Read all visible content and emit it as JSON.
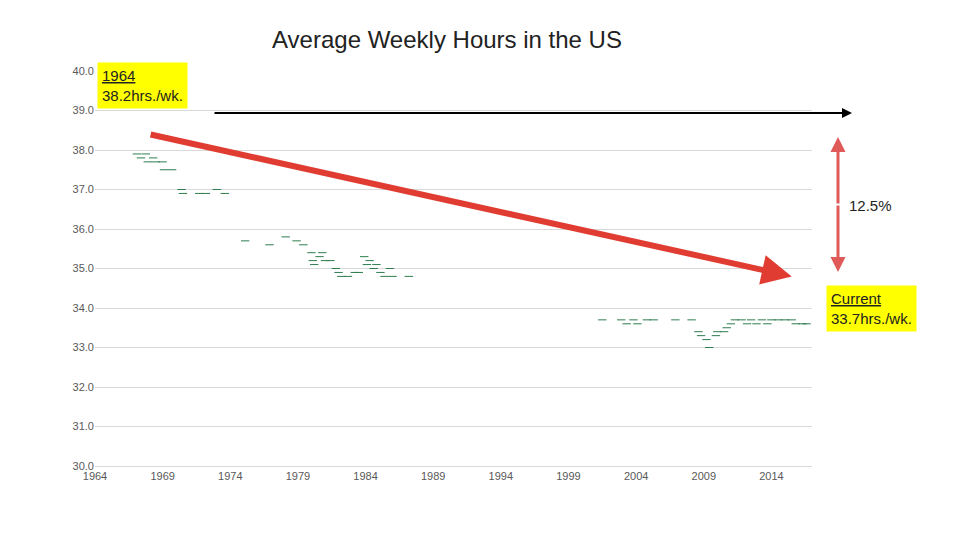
{
  "chart_data": {
    "type": "scatter",
    "title": "Average Weekly Hours in the US",
    "xlim": [
      1964,
      2017
    ],
    "xticks": [
      1964,
      1969,
      1974,
      1979,
      1984,
      1989,
      1994,
      1999,
      2004,
      2009,
      2014
    ],
    "ylim": [
      30,
      40
    ],
    "yticks": [
      {
        "value": 30,
        "label": "30.0"
      },
      {
        "value": 31,
        "label": "31.0"
      },
      {
        "value": 32,
        "label": "32.0"
      },
      {
        "value": 33,
        "label": "33.0"
      },
      {
        "value": 34,
        "label": "34.0"
      },
      {
        "value": 35,
        "label": "35.0"
      },
      {
        "value": 36,
        "label": "36.0"
      },
      {
        "value": 37,
        "label": "37.0"
      },
      {
        "value": 38,
        "label": "38.0"
      },
      {
        "value": 39,
        "label": "39.0"
      },
      {
        "value": 40,
        "label": "40.0"
      }
    ],
    "grid": true,
    "series": [
      {
        "type": "scatter",
        "color": "#2e7d4f",
        "marker": "dash",
        "x": [
          1967.1,
          1967.4,
          1967.75,
          1967.9,
          1968.3,
          1968.5,
          1969.0,
          1969.1,
          1969.7,
          1970.4,
          1970.5,
          1971.7,
          1972.2,
          1973.0,
          1973.6,
          1975.1,
          1976.9,
          1978.1,
          1978.9,
          1979.4,
          1980.0,
          1980.1,
          1980.2,
          1980.6,
          1980.8,
          1981.0,
          1981.4,
          1981.8,
          1982.0,
          1982.2,
          1982.7,
          1983.2,
          1983.5,
          1983.9,
          1984.1,
          1984.3,
          1984.6,
          1984.8,
          1985.1,
          1985.4,
          1985.8,
          1986.0,
          1987.2,
          2001.5,
          2002.9,
          2003.3,
          2003.8,
          2004.1,
          2004.8,
          2005.3,
          2006.9,
          2008.1,
          2008.6,
          2008.8,
          2009.2,
          2009.4,
          2009.9,
          2010.0,
          2010.5,
          2010.7,
          2011.0,
          2011.3,
          2011.8,
          2012.2,
          2012.5,
          2012.9,
          2013.3,
          2013.7,
          2014.0,
          2014.5,
          2015.0,
          2015.5,
          2015.8,
          2016.3,
          2016.6
        ],
        "values": [
          37.9,
          37.8,
          37.9,
          37.7,
          37.8,
          37.7,
          37.7,
          37.5,
          37.5,
          37.0,
          36.9,
          36.9,
          36.9,
          37.0,
          36.9,
          35.7,
          35.6,
          35.8,
          35.7,
          35.6,
          35.4,
          35.2,
          35.1,
          35.3,
          35.4,
          35.2,
          35.2,
          35.0,
          34.9,
          34.8,
          34.8,
          34.9,
          34.9,
          35.3,
          35.1,
          35.2,
          35.0,
          35.1,
          34.9,
          34.8,
          35.0,
          34.8,
          34.8,
          33.7,
          33.7,
          33.6,
          33.7,
          33.6,
          33.7,
          33.7,
          33.7,
          33.7,
          33.4,
          33.3,
          33.2,
          33.0,
          33.3,
          33.4,
          33.4,
          33.5,
          33.6,
          33.7,
          33.7,
          33.6,
          33.7,
          33.6,
          33.7,
          33.6,
          33.7,
          33.7,
          33.7,
          33.7,
          33.6,
          33.6,
          33.6
        ]
      },
      {
        "type": "arrow",
        "color": "#e03c31",
        "x": [
          1968,
          2015.5
        ],
        "values": [
          38.4,
          34.8
        ]
      }
    ],
    "annotations": [
      {
        "lines": [
          "1964",
          "38.2hrs./wk."
        ]
      },
      {
        "lines": [
          "Current",
          "33.7hrs./wk."
        ]
      },
      {
        "text": "12.5%"
      }
    ]
  }
}
